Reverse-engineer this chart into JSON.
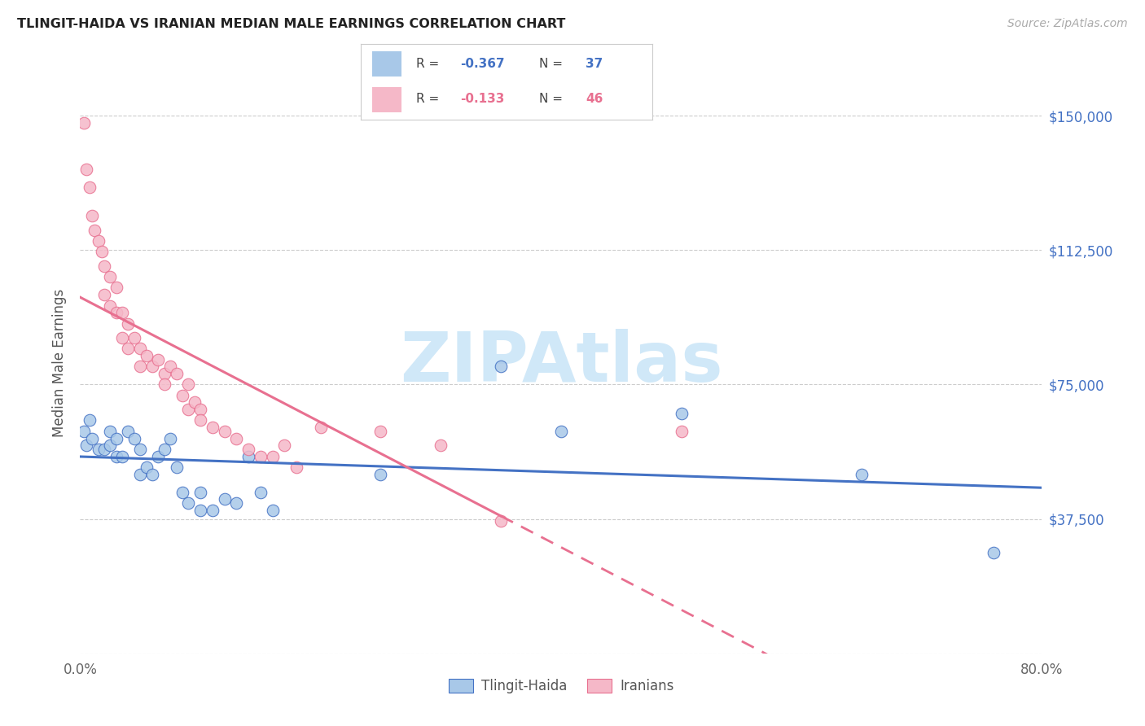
{
  "title": "TLINGIT-HAIDA VS IRANIAN MEDIAN MALE EARNINGS CORRELATION CHART",
  "source": "Source: ZipAtlas.com",
  "ylabel": "Median Male Earnings",
  "xlim": [
    0.0,
    0.8
  ],
  "ylim": [
    0,
    162000
  ],
  "yticks": [
    0,
    37500,
    75000,
    112500,
    150000
  ],
  "ytick_labels": [
    "",
    "$37,500",
    "$75,000",
    "$112,500",
    "$150,000"
  ],
  "xticks": [
    0.0,
    0.1,
    0.2,
    0.3,
    0.4,
    0.5,
    0.6,
    0.7,
    0.8
  ],
  "xtick_labels": [
    "0.0%",
    "",
    "",
    "",
    "",
    "",
    "",
    "",
    "80.0%"
  ],
  "blue_color": "#a8c8e8",
  "pink_color": "#f5b8c8",
  "blue_line_color": "#4472c4",
  "pink_line_color": "#e87090",
  "watermark": "ZIPAtlas",
  "watermark_color": "#d0e8f8",
  "tlingit_x": [
    0.003,
    0.005,
    0.008,
    0.01,
    0.015,
    0.02,
    0.025,
    0.025,
    0.03,
    0.03,
    0.035,
    0.04,
    0.045,
    0.05,
    0.05,
    0.055,
    0.06,
    0.065,
    0.07,
    0.075,
    0.08,
    0.085,
    0.09,
    0.1,
    0.1,
    0.11,
    0.12,
    0.13,
    0.14,
    0.15,
    0.16,
    0.25,
    0.35,
    0.4,
    0.5,
    0.65,
    0.76
  ],
  "tlingit_y": [
    62000,
    58000,
    65000,
    60000,
    57000,
    57000,
    62000,
    58000,
    60000,
    55000,
    55000,
    62000,
    60000,
    57000,
    50000,
    52000,
    50000,
    55000,
    57000,
    60000,
    52000,
    45000,
    42000,
    45000,
    40000,
    40000,
    43000,
    42000,
    55000,
    45000,
    40000,
    50000,
    80000,
    62000,
    67000,
    50000,
    28000
  ],
  "iranian_x": [
    0.003,
    0.005,
    0.008,
    0.01,
    0.012,
    0.015,
    0.018,
    0.02,
    0.02,
    0.025,
    0.025,
    0.03,
    0.03,
    0.035,
    0.035,
    0.04,
    0.04,
    0.045,
    0.05,
    0.05,
    0.055,
    0.06,
    0.065,
    0.07,
    0.07,
    0.075,
    0.08,
    0.085,
    0.09,
    0.09,
    0.095,
    0.1,
    0.1,
    0.11,
    0.12,
    0.13,
    0.14,
    0.15,
    0.16,
    0.17,
    0.18,
    0.2,
    0.25,
    0.3,
    0.35,
    0.5
  ],
  "iranian_y": [
    148000,
    135000,
    130000,
    122000,
    118000,
    115000,
    112000,
    108000,
    100000,
    105000,
    97000,
    102000,
    95000,
    95000,
    88000,
    92000,
    85000,
    88000,
    85000,
    80000,
    83000,
    80000,
    82000,
    78000,
    75000,
    80000,
    78000,
    72000,
    75000,
    68000,
    70000,
    68000,
    65000,
    63000,
    62000,
    60000,
    57000,
    55000,
    55000,
    58000,
    52000,
    63000,
    62000,
    58000,
    37000,
    62000
  ]
}
